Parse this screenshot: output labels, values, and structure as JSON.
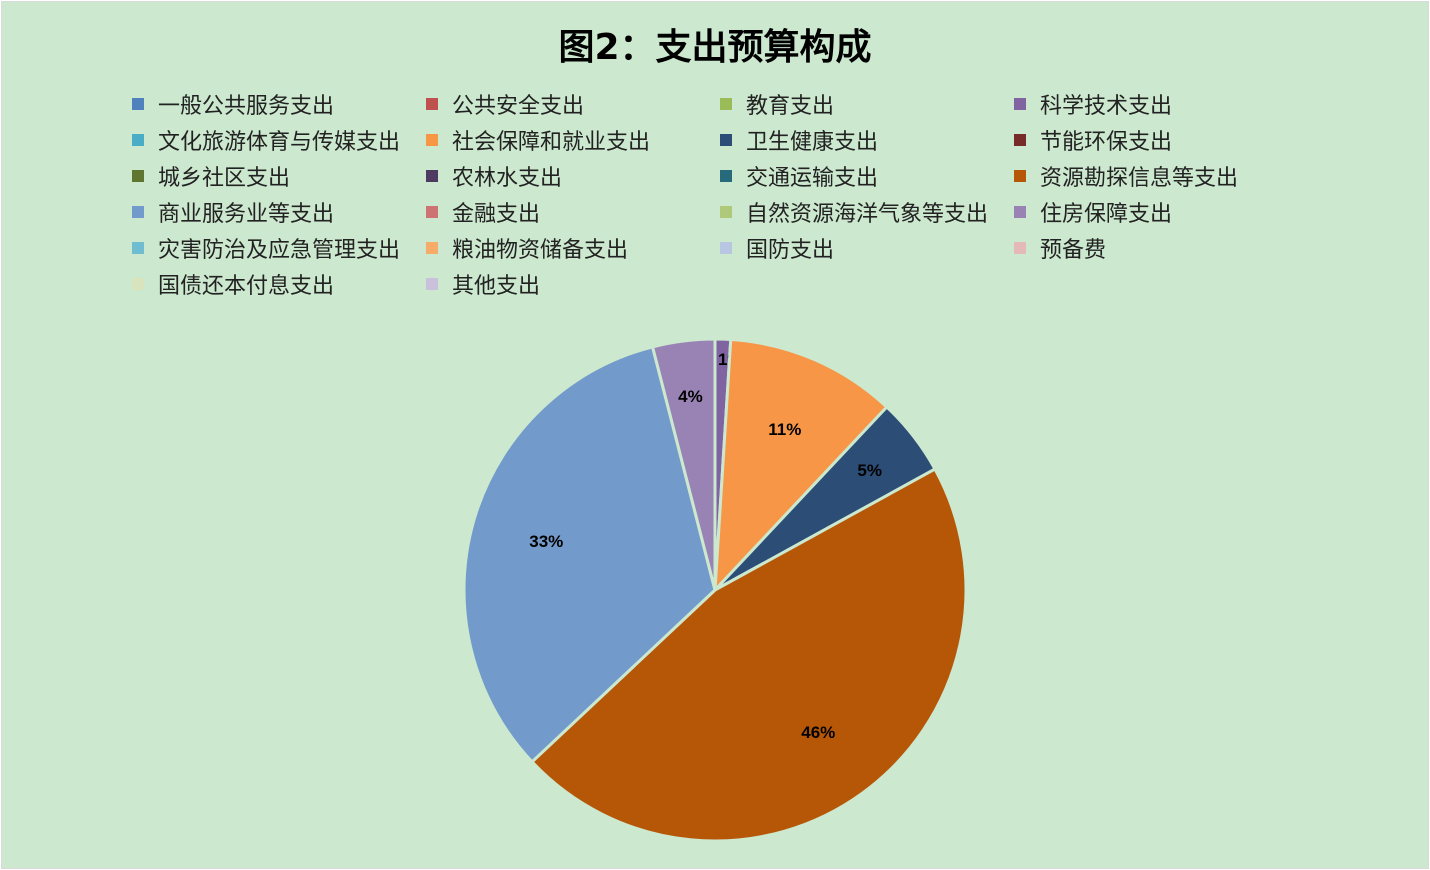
{
  "chart_data": {
    "type": "pie",
    "title": "图2：支出预算构成",
    "legend_position": "top",
    "categories": [
      "一般公共服务支出",
      "公共安全支出",
      "教育支出",
      "科学技术支出",
      "文化旅游体育与传媒支出",
      "社会保障和就业支出",
      "卫生健康支出",
      "节能环保支出",
      "城乡社区支出",
      "农林水支出",
      "交通运输支出",
      "资源勘探信息等支出",
      "商业服务业等支出",
      "金融支出",
      "自然资源海洋气象等支出",
      "住房保障支出",
      "灾害防治及应急管理支出",
      "粮油物资储备支出",
      "国防支出",
      "预备费",
      "国债还本付息支出",
      "其他支出"
    ],
    "colors": [
      "#4F81BD",
      "#C0504D",
      "#9BBB59",
      "#8064A2",
      "#4BACC6",
      "#F79646",
      "#2C4D75",
      "#772C2A",
      "#5F7530",
      "#4D3B62",
      "#276A7C",
      "#B65708",
      "#729ACA",
      "#CD7371",
      "#AFC97A",
      "#9983B5",
      "#6FBDD1",
      "#F9AB6B",
      "#B9C6E2",
      "#E4B9B8",
      "#D7E4BD",
      "#CCC1DA"
    ],
    "values": [
      0,
      0,
      0,
      1,
      0,
      11,
      5,
      0,
      0,
      0,
      0,
      46,
      33,
      0,
      0,
      4,
      0,
      0,
      0,
      0,
      0,
      0
    ],
    "data_labels": [
      "",
      "",
      "",
      "1%",
      "",
      "11%",
      "5%",
      "",
      "",
      "",
      "",
      "46%",
      "33%",
      "",
      "",
      "4%",
      "",
      "",
      "",
      "",
      "",
      ""
    ]
  }
}
